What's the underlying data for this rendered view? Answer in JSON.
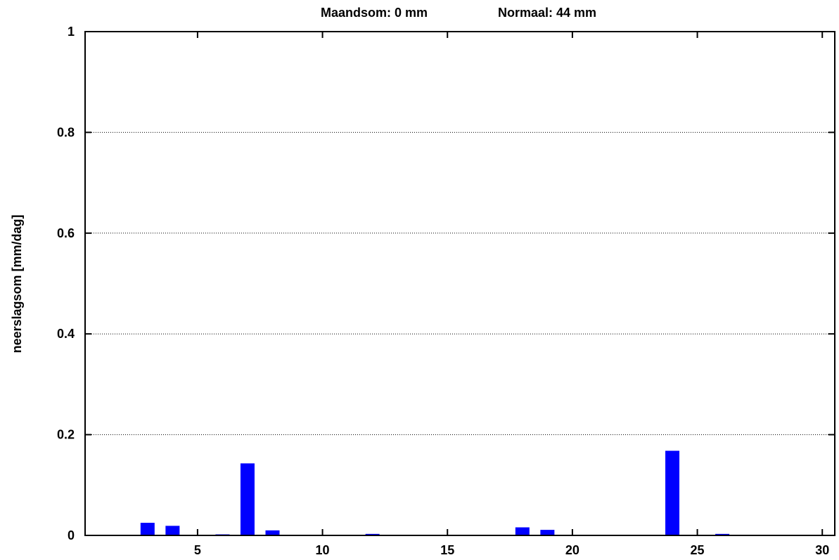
{
  "header": {
    "maandsom": "Maandsom: 0 mm",
    "normaal": "Normaal: 44 mm"
  },
  "chart_data": {
    "type": "bar",
    "ylabel": "neerslagsom [mm/dag]",
    "xlabel": "",
    "xlim": [
      0.5,
      30.5
    ],
    "ylim": [
      0,
      1
    ],
    "x_ticks": [
      5,
      10,
      15,
      20,
      25,
      30
    ],
    "y_ticks": [
      0,
      0.2,
      0.4,
      0.6,
      0.8,
      1
    ],
    "y_tick_labels": [
      "0",
      "0.2",
      "0.4",
      "0.6",
      "0.8",
      "1"
    ],
    "grid": "horizontal dotted",
    "bar_color": "#0000ff",
    "days": [
      3,
      4,
      6,
      7,
      8,
      12,
      18,
      19,
      24,
      26
    ],
    "values": [
      0.025,
      0.019,
      0.001,
      0.143,
      0.01,
      0.003,
      0.016,
      0.011,
      0.168,
      0.003
    ]
  }
}
